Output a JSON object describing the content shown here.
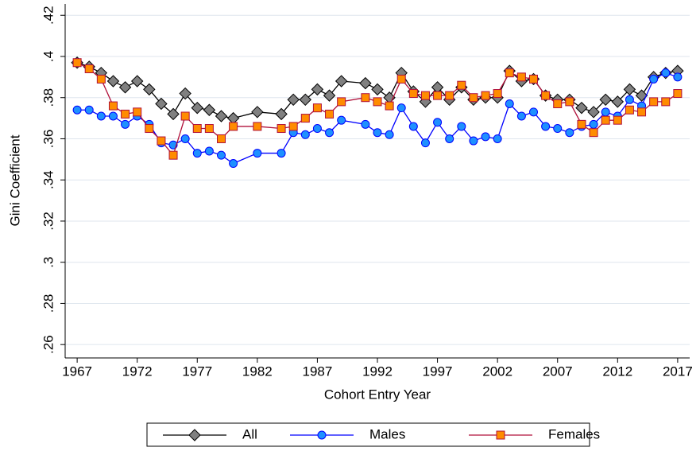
{
  "chart_data": {
    "type": "line",
    "xlabel": "Cohort Entry Year",
    "ylabel": "Gini Coefficient",
    "x": [
      1967,
      1968,
      1969,
      1970,
      1971,
      1972,
      1973,
      1974,
      1975,
      1976,
      1977,
      1978,
      1979,
      1980,
      1982,
      1984,
      1985,
      1986,
      1987,
      1988,
      1989,
      1991,
      1992,
      1993,
      1994,
      1995,
      1996,
      1997,
      1998,
      1999,
      2000,
      2001,
      2002,
      2003,
      2004,
      2005,
      2006,
      2007,
      2008,
      2009,
      2010,
      2011,
      2012,
      2013,
      2014,
      2015,
      2016,
      2017
    ],
    "series": [
      {
        "name": "All",
        "color": "#000000",
        "marker": "diamond",
        "marker_fill": "#808080",
        "values": [
          0.397,
          0.395,
          0.392,
          0.388,
          0.385,
          0.388,
          0.384,
          0.377,
          0.372,
          0.382,
          0.375,
          0.374,
          0.371,
          0.37,
          0.373,
          0.372,
          0.379,
          0.379,
          0.384,
          0.381,
          0.388,
          0.387,
          0.384,
          0.38,
          0.392,
          0.383,
          0.378,
          0.385,
          0.379,
          0.385,
          0.379,
          0.38,
          0.38,
          0.393,
          0.388,
          0.389,
          0.381,
          0.379,
          0.379,
          0.375,
          0.373,
          0.379,
          0.378,
          0.384,
          0.381,
          0.39,
          0.392,
          0.393
        ]
      },
      {
        "name": "Males",
        "color": "#0000ff",
        "marker": "circle",
        "marker_fill": "#1e90ff",
        "values": [
          0.374,
          0.374,
          0.371,
          0.371,
          0.367,
          0.371,
          0.367,
          0.358,
          0.357,
          0.36,
          0.353,
          0.354,
          0.352,
          0.348,
          0.353,
          0.353,
          0.363,
          0.362,
          0.365,
          0.363,
          0.369,
          0.367,
          0.363,
          0.362,
          0.375,
          0.366,
          0.358,
          0.368,
          0.36,
          0.366,
          0.359,
          0.361,
          0.36,
          0.377,
          0.371,
          0.373,
          0.366,
          0.365,
          0.363,
          0.366,
          0.367,
          0.373,
          0.371,
          0.379,
          0.376,
          0.389,
          0.392,
          0.39
        ]
      },
      {
        "name": "Females",
        "color": "#b0103a",
        "marker": "square",
        "marker_fill": "#ff8c00",
        "values": [
          0.397,
          0.394,
          0.389,
          0.376,
          0.372,
          0.373,
          0.365,
          0.359,
          0.352,
          0.371,
          0.365,
          0.365,
          0.36,
          0.366,
          0.366,
          0.365,
          0.366,
          0.37,
          0.375,
          0.372,
          0.378,
          0.38,
          0.378,
          0.376,
          0.389,
          0.382,
          0.381,
          0.381,
          0.381,
          0.386,
          0.38,
          0.381,
          0.382,
          0.392,
          0.39,
          0.389,
          0.381,
          0.377,
          0.378,
          0.367,
          0.363,
          0.369,
          0.369,
          0.374,
          0.373,
          0.378,
          0.378,
          0.382
        ]
      }
    ],
    "xlim": [
      1966,
      2018
    ],
    "xticks": [
      1967,
      1972,
      1977,
      1982,
      1987,
      1992,
      1997,
      2002,
      2007,
      2012,
      2017
    ],
    "ylim": [
      0.2535,
      0.4255
    ],
    "yticks": [
      {
        "value": 0.26,
        "label": ".26"
      },
      {
        "value": 0.28,
        "label": ".28"
      },
      {
        "value": 0.3,
        "label": ".3"
      },
      {
        "value": 0.32,
        "label": ".32"
      },
      {
        "value": 0.34,
        "label": ".34"
      },
      {
        "value": 0.36,
        "label": ".36"
      },
      {
        "value": 0.38,
        "label": ".38"
      },
      {
        "value": 0.4,
        "label": ".4"
      },
      {
        "value": 0.42,
        "label": ".42"
      }
    ],
    "grid": true,
    "legend": "bottom"
  }
}
